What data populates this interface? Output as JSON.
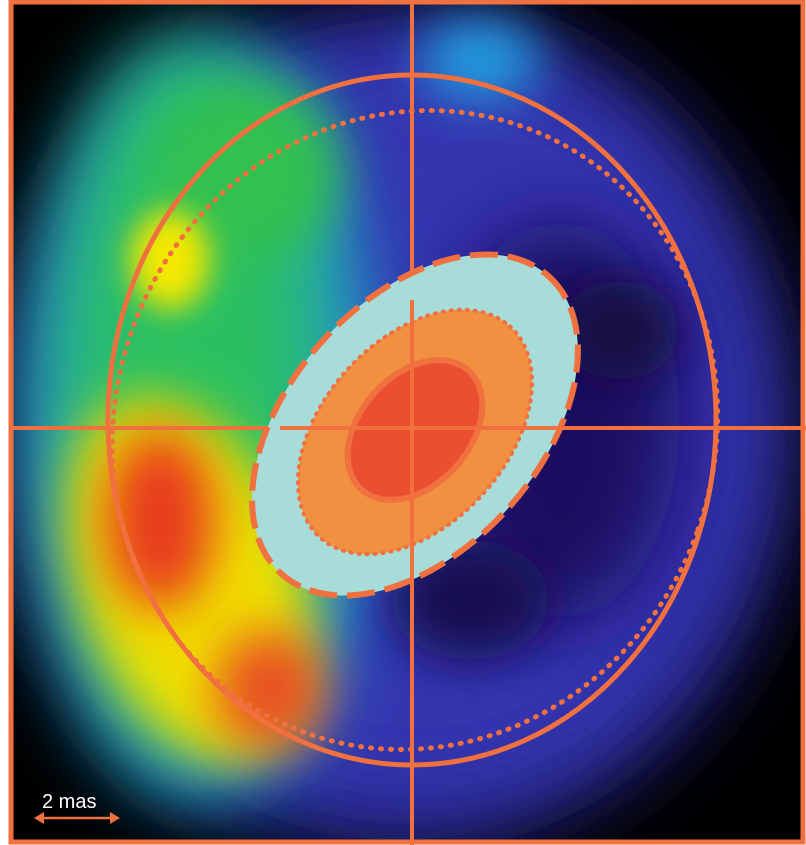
{
  "scale_bar": {
    "label": "2 mas"
  }
}
